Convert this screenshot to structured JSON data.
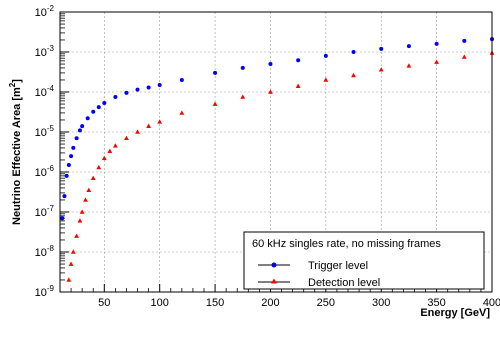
{
  "chart_data": {
    "type": "scatter",
    "title": "",
    "xlabel": "Energy [GeV]",
    "ylabel_text": "Neutrino Effective Area [m",
    "ylabel_sup": "2",
    "ylabel_close": "]",
    "xlim": [
      10,
      400
    ],
    "ylim": [
      1e-09,
      0.01
    ],
    "yscale": "log",
    "grid": true,
    "legend_position": "lower-right",
    "legend_title": "60 kHz singles rate, no missing frames",
    "x_ticks": [
      {
        "value": 50,
        "label": "50"
      },
      {
        "value": 100,
        "label": "100"
      },
      {
        "value": 150,
        "label": "150"
      },
      {
        "value": 200,
        "label": "200"
      },
      {
        "value": 250,
        "label": "250"
      },
      {
        "value": 300,
        "label": "300"
      },
      {
        "value": 350,
        "label": "350"
      },
      {
        "value": 400,
        "label": "400"
      }
    ],
    "y_ticks": [
      {
        "exp": -9,
        "base": "10",
        "sup": "-9"
      },
      {
        "exp": -8,
        "base": "10",
        "sup": "-8"
      },
      {
        "exp": -7,
        "base": "10",
        "sup": "-7"
      },
      {
        "exp": -6,
        "base": "10",
        "sup": "-6"
      },
      {
        "exp": -5,
        "base": "10",
        "sup": "-5"
      },
      {
        "exp": -4,
        "base": "10",
        "sup": "-4"
      },
      {
        "exp": -3,
        "base": "10",
        "sup": "-3"
      },
      {
        "exp": -2,
        "base": "10",
        "sup": "-2"
      }
    ],
    "series": [
      {
        "name": "Trigger level",
        "color": "#0000ff",
        "marker": "circle",
        "x": [
          12,
          14,
          16,
          18,
          20,
          22,
          25,
          28,
          30,
          35,
          40,
          45,
          50,
          60,
          70,
          80,
          90,
          100,
          120,
          150,
          175,
          200,
          225,
          250,
          275,
          300,
          325,
          350,
          375,
          400
        ],
        "y": [
          7e-08,
          2.5e-07,
          8e-07,
          1.5e-06,
          2.5e-06,
          4e-06,
          7e-06,
          1.1e-05,
          1.4e-05,
          2.2e-05,
          3.2e-05,
          4.2e-05,
          5.3e-05,
          7.5e-05,
          9.5e-05,
          0.000115,
          0.00013,
          0.00015,
          0.0002,
          0.0003,
          0.0004,
          0.0005,
          0.00062,
          0.0008,
          0.001,
          0.0012,
          0.0014,
          0.0016,
          0.0019,
          0.0021
        ]
      },
      {
        "name": "Detection level",
        "color": "#ff0000",
        "marker": "triangle",
        "x": [
          18,
          20,
          22,
          25,
          28,
          30,
          33,
          36,
          40,
          45,
          50,
          55,
          60,
          70,
          80,
          90,
          100,
          120,
          150,
          175,
          200,
          225,
          250,
          275,
          300,
          325,
          350,
          375,
          400
        ],
        "y": [
          2e-09,
          5e-09,
          1e-08,
          2.5e-08,
          6e-08,
          1e-07,
          2e-07,
          3.5e-07,
          7e-07,
          1.3e-06,
          2.2e-06,
          3.3e-06,
          4.5e-06,
          7e-06,
          1e-05,
          1.4e-05,
          1.8e-05,
          3e-05,
          5e-05,
          7.5e-05,
          0.0001,
          0.00014,
          0.0002,
          0.00026,
          0.00036,
          0.00045,
          0.00056,
          0.00075,
          0.00095
        ]
      }
    ]
  }
}
